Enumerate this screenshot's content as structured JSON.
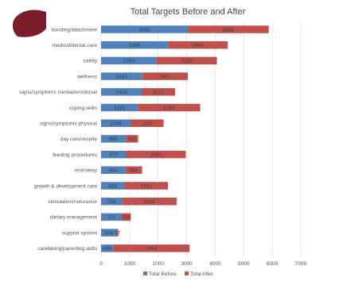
{
  "colors": {
    "before": "#4f81bd",
    "after": "#c0504d",
    "grid": "#d9d9d9",
    "logo": "#7b1e2b"
  },
  "logo_icon": "maroon-shield-icon",
  "chart_data": {
    "type": "bar",
    "orientation": "horizontal",
    "stacked": true,
    "title": "Total Targets Before and After",
    "categories": [
      "bonding/attachment",
      "medical/dental care",
      "safety",
      "wellness",
      "signs/symptoms mental/emotional",
      "coping skills",
      "signs/symptoms physical",
      "day care/respite",
      "feeding procedures",
      "rest/sleep",
      "growth & development care",
      "stimulation/nuturance",
      "dietary management",
      "support system",
      "caretaking/parenting skills"
    ],
    "series": [
      {
        "name": "Total Before",
        "values": [
          3042,
          2348,
          1943,
          1443,
          1423,
          1291,
          1034,
          866,
          877,
          854,
          824,
          729,
          725,
          546,
          436
        ],
        "labels": [
          "3042",
          "2348",
          "1943",
          "1443",
          "1423",
          "1291",
          "1034",
          "866",
          "877",
          "854",
          "824",
          "729",
          "725",
          "546",
          "436"
        ]
      },
      {
        "name": "Total After",
        "values": [
          2833,
          2092,
          2116,
          1601,
          1171,
          2184,
          1157,
          432,
          2091,
          584,
          1521,
          1919,
          316,
          57,
          2664
        ],
        "labels": [
          "2833",
          "2092",
          "2116",
          "1601",
          "1171",
          "2184",
          "1157",
          "432",
          "2091",
          "584",
          "1521",
          "1919",
          "316",
          "57",
          "2664"
        ]
      }
    ],
    "xlim": [
      0,
      7000
    ],
    "xticks": [
      "0",
      "1000",
      "2000",
      "3000",
      "4000",
      "5000",
      "6000",
      "7000"
    ],
    "grid": true,
    "legend_position": "bottom"
  }
}
